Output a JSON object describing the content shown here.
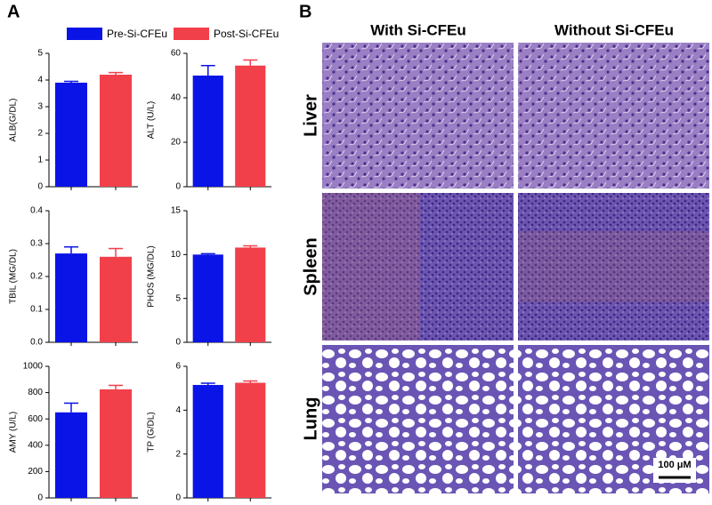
{
  "panel_labels": [
    "A",
    "B"
  ],
  "legend": [
    {
      "name": "Pre-Si-CFEu",
      "color": "#0a14e6"
    },
    {
      "name": "Post-Si-CFEu",
      "color": "#f2404a"
    }
  ],
  "chart_data": [
    {
      "type": "bar",
      "y_label": "ALB(G/DL)",
      "categories": [
        null,
        null
      ],
      "values": [
        3.9,
        4.2
      ],
      "errors": [
        0.05,
        0.08
      ],
      "ylim": [
        0,
        5
      ],
      "yticks": [
        0,
        1,
        2,
        3,
        4,
        5
      ]
    },
    {
      "type": "bar",
      "y_label": "ALT (U/L)",
      "categories": [
        null,
        null
      ],
      "values": [
        50,
        54.5
      ],
      "errors": [
        4.5,
        2.5
      ],
      "ylim": [
        0,
        60
      ],
      "yticks": [
        0,
        20,
        40,
        60
      ]
    },
    {
      "type": "bar",
      "y_label": "TBIL (MG/DL)",
      "categories": [
        null,
        null
      ],
      "values": [
        0.27,
        0.26
      ],
      "errors": [
        0.02,
        0.025
      ],
      "ylim": [
        0,
        0.4
      ],
      "yticks": [
        {
          "value": 0,
          "label": "0.0"
        },
        0.1,
        0.2,
        0.3,
        0.4
      ]
    },
    {
      "type": "bar",
      "y_label": "PHOS (MG/DL)",
      "categories": [
        null,
        null
      ],
      "values": [
        10,
        10.8
      ],
      "errors": [
        0.1,
        0.2
      ],
      "ylim": [
        0,
        15
      ],
      "yticks": [
        0,
        5,
        10,
        15
      ]
    },
    {
      "type": "bar",
      "y_label": "AMY (U/L)",
      "categories": [
        null,
        null
      ],
      "values": [
        650,
        825
      ],
      "errors": [
        70,
        30
      ],
      "ylim": [
        0,
        1000
      ],
      "yticks": [
        0,
        200,
        400,
        600,
        800,
        1000
      ]
    },
    {
      "type": "bar",
      "y_label": "TP (G/DL)",
      "categories": [
        null,
        null
      ],
      "values": [
        5.15,
        5.25
      ],
      "errors": [
        0.08,
        0.08
      ],
      "ylim": [
        0,
        6
      ],
      "yticks": [
        0,
        2,
        4,
        6
      ]
    }
  ],
  "histology": {
    "columns": [
      "With Si-CFEu",
      "Without Si-CFEu"
    ],
    "rows": [
      "Liver",
      "Spleen",
      "Lung"
    ],
    "scale_bar": "100 μM"
  }
}
